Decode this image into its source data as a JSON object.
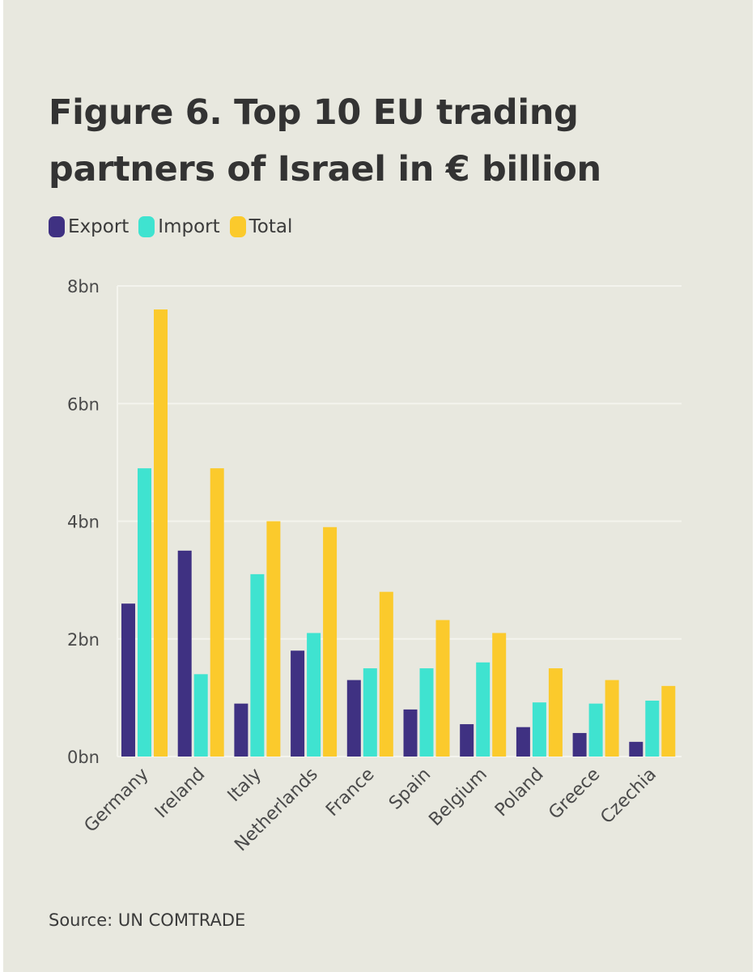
{
  "chart_data": {
    "type": "bar",
    "title": "Figure 6. Top 10 EU trading partners of Israel in € billion",
    "title_lines": [
      "Figure 6. Top 10 EU trading",
      "partners of Israel in € billion"
    ],
    "xlabel": "",
    "ylabel": "",
    "ylim": [
      0,
      8
    ],
    "yticks": [
      0,
      2,
      4,
      6,
      8
    ],
    "ytick_labels": [
      "0bn",
      "2bn",
      "4bn",
      "6bn",
      "8bn"
    ],
    "grid": true,
    "legend_position": "top-left",
    "categories": [
      "Germany",
      "Ireland",
      "Italy",
      "Netherlands",
      "France",
      "Spain",
      "Belgium",
      "Poland",
      "Greece",
      "Czechia"
    ],
    "series": [
      {
        "name": "Export",
        "color": "#3f3182",
        "values": [
          2.6,
          3.5,
          0.9,
          1.8,
          1.3,
          0.8,
          0.55,
          0.5,
          0.4,
          0.25
        ]
      },
      {
        "name": "Import",
        "color": "#3fe3d0",
        "values": [
          4.9,
          1.4,
          3.1,
          2.1,
          1.5,
          1.5,
          1.6,
          0.92,
          0.9,
          0.95
        ]
      },
      {
        "name": "Total",
        "color": "#fbca2c",
        "values": [
          7.6,
          4.9,
          4.0,
          3.9,
          2.8,
          2.32,
          2.1,
          1.5,
          1.3,
          1.2
        ]
      }
    ],
    "source": "Source: UN COMTRADE"
  }
}
